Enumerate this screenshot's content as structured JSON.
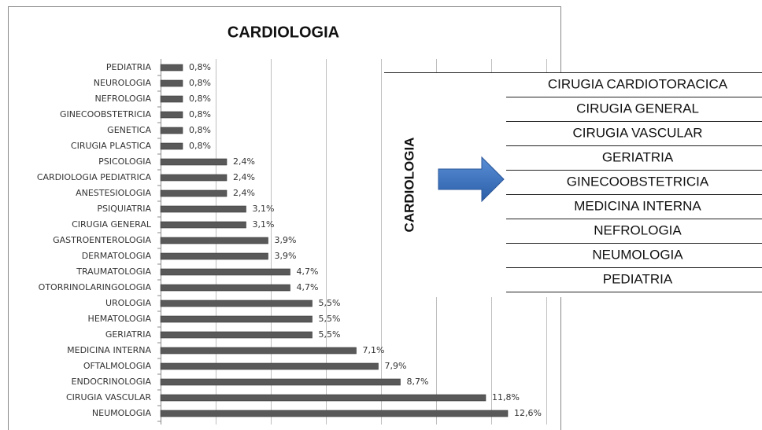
{
  "chart_data": {
    "type": "bar",
    "orientation": "horizontal",
    "title": "CARDIOLOGIA",
    "categories": [
      "PEDIATRIA",
      "NEUROLOGIA",
      "NEFROLOGIA",
      "GINECOOBSTETRICIA",
      "GENETICA",
      "CIRUGIA PLASTICA",
      "PSICOLOGIA",
      "CARDIOLOGIA PEDIATRICA",
      "ANESTESIOLOGIA",
      "PSIQUIATRIA",
      "CIRUGIA GENERAL",
      "GASTROENTEROLOGIA",
      "DERMATOLOGIA",
      "TRAUMATOLOGIA",
      "OTORRINOLARINGOLOGIA",
      "UROLOGIA",
      "HEMATOLOGIA",
      "GERIATRIA",
      "MEDICINA INTERNA",
      "OFTALMOLOGIA",
      "ENDOCRINOLOGIA",
      "CIRUGIA VASCULAR",
      "NEUMOLOGIA"
    ],
    "values": [
      0.8,
      0.8,
      0.8,
      0.8,
      0.8,
      0.8,
      2.4,
      2.4,
      2.4,
      3.1,
      3.1,
      3.9,
      3.9,
      4.7,
      4.7,
      5.5,
      5.5,
      5.5,
      7.1,
      7.9,
      8.7,
      11.8,
      12.6
    ],
    "value_labels": [
      "0,8%",
      "0,8%",
      "0,8%",
      "0,8%",
      "0,8%",
      "0,8%",
      "2,4%",
      "2,4%",
      "2,4%",
      "3,1%",
      "3,1%",
      "3,9%",
      "3,9%",
      "4,7%",
      "4,7%",
      "5,5%",
      "5,5%",
      "5,5%",
      "7,1%",
      "7,9%",
      "8,7%",
      "11,8%",
      "12,6%"
    ],
    "color": "#595959",
    "xlim": [
      0,
      14
    ],
    "xticks": [
      0,
      2,
      4,
      6,
      8,
      10,
      12,
      14
    ],
    "grid": true
  },
  "side_panel": {
    "label": "CARDIOLOGIA",
    "items": [
      "CIRUGIA CARDIOTORACICA",
      "CIRUGIA GENERAL",
      "CIRUGIA VASCULAR",
      "GERIATRIA",
      "GINECOOBSTETRICIA",
      "MEDICINA INTERNA",
      "NEFROLOGIA",
      "NEUMOLOGIA",
      "PEDIATRIA"
    ]
  }
}
